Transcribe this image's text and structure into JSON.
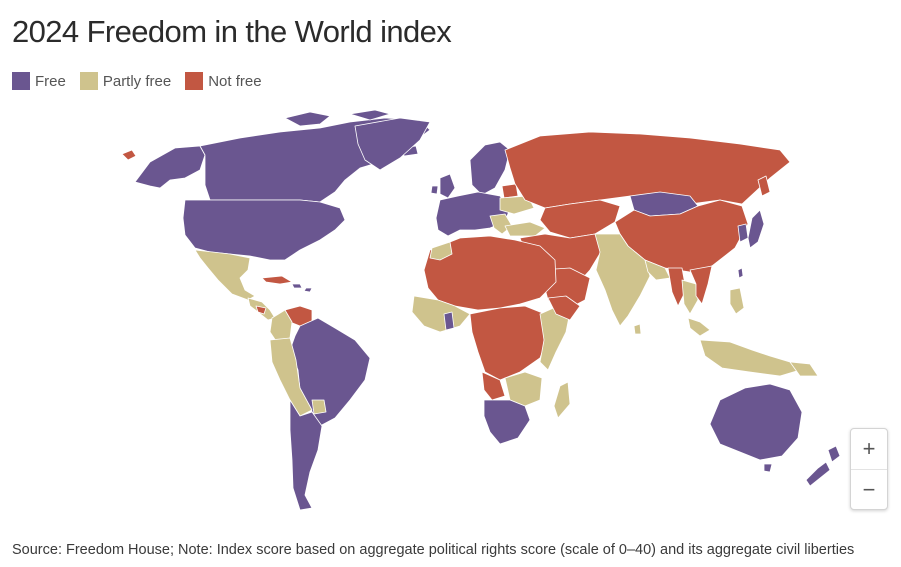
{
  "title": "2024 Freedom in the World index",
  "legend": [
    {
      "label": "Free",
      "color": "#6a5690"
    },
    {
      "label": "Partly free",
      "color": "#cfc38d"
    },
    {
      "label": "Not free",
      "color": "#c25742"
    }
  ],
  "map": {
    "border_color": "#ffffff",
    "background": "#ffffff"
  },
  "zoom": {
    "in_label": "+",
    "out_label": "−"
  },
  "source": "Source: Freedom House; Note: Index score based on aggregate political rights score (scale of 0–40) and its aggregate civil liberties"
}
